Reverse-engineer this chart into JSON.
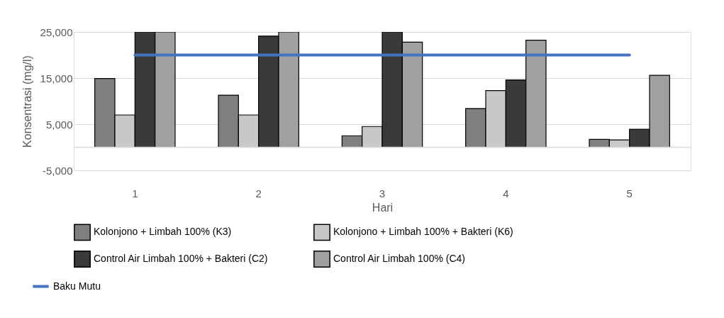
{
  "chart_data": {
    "type": "bar",
    "xlabel": "Hari",
    "ylabel": "Konsentrasi (mg/l)",
    "categories": [
      "1",
      "2",
      "3",
      "4",
      "5"
    ],
    "series": [
      {
        "name": "Kolonjono + Limbah 100% (K3)",
        "color": "#7f7f7f",
        "values": [
          14900,
          11300,
          2500,
          8400,
          1700
        ]
      },
      {
        "name": "Kolonjono + Limbah 100% + Bakteri (K6)",
        "color": "#c8c8c8",
        "values": [
          7000,
          7000,
          4500,
          12300,
          1600
        ]
      },
      {
        "name": "Control Air Limbah 100% + Bakteri (C2)",
        "color": "#3a3a3a",
        "values": [
          25000,
          24100,
          25000,
          14600,
          3900
        ]
      },
      {
        "name": "Control Air Limbah 100% (C4)",
        "color": "#a0a0a0",
        "values": [
          25000,
          25000,
          22800,
          23200,
          15600
        ]
      },
      {
        "name": "Baku Mutu",
        "type": "line",
        "color": "#4472c4",
        "values": [
          20000,
          20000,
          20000,
          20000,
          20000
        ]
      }
    ],
    "ylim": [
      -5000,
      25000
    ],
    "yticks": [
      {
        "value": -5000,
        "label": "-5,000"
      },
      {
        "value": 5000,
        "label": "5,000"
      },
      {
        "value": 15000,
        "label": "15,000"
      },
      {
        "value": 25000,
        "label": "25,000"
      }
    ],
    "grid": "y",
    "legend": "bottom"
  }
}
